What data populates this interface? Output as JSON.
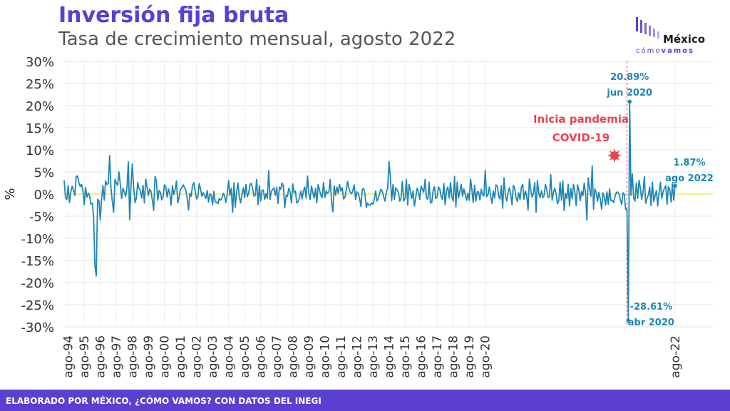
{
  "header": {
    "title": "Inversión fija bruta",
    "subtitle": "Tasa de crecimiento mensual, agosto 2022"
  },
  "logo": {
    "name": "México",
    "tagline_a": "cómo",
    "tagline_b": "vamos"
  },
  "footer": {
    "text": "ELABORADO POR MÉXICO, ¿CÓMO VAMOS? CON DATOS DEL INEGI"
  },
  "colors": {
    "line": "#1f86b8",
    "accent": "#5b3fd1",
    "annotation": "#e8454f",
    "zero_line": "#e8e44a"
  },
  "chart_data": {
    "type": "line",
    "ylabel": "%",
    "ylim": [
      -30,
      30
    ],
    "yticks": [
      "30%",
      "25%",
      "20%",
      "15%",
      "10%",
      "5%",
      "0%",
      "-5%",
      "-10%",
      "-15%",
      "-20%",
      "-25%",
      "-30%"
    ],
    "xticks": [
      "ago-94",
      "ago-95",
      "ago-96",
      "ago-97",
      "ago-98",
      "ago-99",
      "ago-00",
      "ago-01",
      "ago-02",
      "ago-03",
      "ago-04",
      "ago-05",
      "ago-06",
      "ago-07",
      "ago-08",
      "ago-09",
      "ago-10",
      "ago-11",
      "ago-12",
      "ago-13",
      "ago-14",
      "ago-15",
      "ago-16",
      "ago-17",
      "ago-18",
      "ago-19",
      "ago-20",
      "ago-22"
    ],
    "grid": true,
    "series": [
      {
        "values": [
          3.1,
          -0.8,
          -1.2,
          1.9,
          -1.9,
          0.5,
          1.8,
          0.9,
          -0.3,
          4.0,
          4.1,
          2.6,
          1.7,
          2.2,
          0.9,
          -2.4,
          1.5,
          -0.7,
          0.2,
          -0.3,
          -2.3,
          -2.0,
          -5.1,
          -16.0,
          -18.5,
          -1.2,
          -1.5,
          -5.8,
          -1.2,
          1.9,
          -1.4,
          3.0,
          2.2,
          2.4,
          8.7,
          1.5,
          -1.6,
          -4.1,
          3.3,
          2.5,
          2.0,
          5.0,
          2.1,
          -1.0,
          1.3,
          0.5,
          -0.5,
          1.5,
          7.3,
          -5.8,
          2.1,
          6.8,
          1.5,
          -1.9,
          -0.9,
          2.6,
          1.3,
          0.8,
          -0.9,
          2.0,
          -2.0,
          3.4,
          1.6,
          -0.3,
          1.1,
          0.6,
          -1.5,
          -3.7,
          4.0,
          2.9,
          -1.4,
          0.8,
          0.4,
          -1.3,
          -0.6,
          2.1,
          1.7,
          -0.7,
          1.2,
          0.1,
          -2.5,
          1.9,
          -0.1,
          0.9,
          3.0,
          -2.0,
          -0.7,
          1.1,
          1.4,
          2.1,
          1.5,
          0.9,
          -0.9,
          -3.6,
          0.2,
          -0.5,
          1.9,
          2.6,
          0.7,
          -1.1,
          -0.7,
          2.4,
          1.2,
          -0.5,
          0.3,
          -0.3,
          -1.0,
          0.8,
          -1.8,
          0.1,
          -0.3,
          -2.4,
          0.6,
          -1.8,
          -1.8,
          -2.2,
          -1.0,
          -1.4,
          -0.9,
          0.2,
          -0.5,
          -1.9,
          0.1,
          3.1,
          -0.3,
          1.3,
          -4.1,
          2.6,
          -3.0,
          0.4,
          2.5,
          -0.6,
          -2.0,
          -0.1,
          1.4,
          -0.8,
          2.2,
          -0.6,
          0.2,
          2.2,
          2.4,
          1.2,
          -0.5,
          -0.2,
          3.3,
          -2.4,
          1.9,
          -1.6,
          0.8,
          0.9,
          -1.2,
          0.1,
          -1.0,
          5.3,
          -1.2,
          0.7,
          1.0,
          1.4,
          -0.3,
          1.5,
          -2.1,
          1.6,
          1.1,
          2.5,
          1.9,
          -3.1,
          -0.3,
          -0.5,
          1.3,
          0.6,
          -2.0,
          2.3,
          0.3,
          0.7,
          -2.0,
          -1.7,
          -1.0,
          0.7,
          -1.1,
          0.8,
          1.6,
          -0.9,
          4.1,
          0.2,
          -1.2,
          1.8,
          0.4,
          -0.9,
          1.3,
          -2.0,
          2.2,
          0.9,
          -0.3,
          -0.8,
          2.6,
          -0.8,
          0.7,
          0.2,
          0.5,
          3.3,
          -1.8,
          -4.0,
          1.9,
          -0.3,
          1.6,
          0.2,
          2.2,
          0.7,
          1.4,
          -1.1,
          -0.8,
          0.9,
          2.9,
          1.3,
          0.4,
          0.1,
          0.8,
          2.1,
          -1.2,
          0.5,
          0.2,
          -1.0,
          -2.8,
          1.0,
          1.3,
          0.1,
          -3.0,
          -2.0,
          -2.5,
          -2.5,
          -2.0,
          -2.3,
          -1.1,
          0.7,
          -1.6,
          -0.9,
          0.2,
          1.1,
          0.6,
          -0.6,
          -1.6,
          0.4,
          1.3,
          7.3,
          3.9,
          -1.5,
          2.2,
          -1.2,
          1.4,
          0.9,
          0.5,
          -1.6,
          -0.9,
          2.9,
          -1.6,
          -1.0,
          3.3,
          -2.5,
          2.2,
          0.6,
          -1.0,
          0.7,
          -2.7,
          -0.7,
          1.3,
          0.6,
          -1.2,
          1.8,
          1.0,
          0.4,
          3.3,
          -0.9,
          -1.2,
          2.7,
          -2.0,
          -1.9,
          0.9,
          1.7,
          -1.0,
          -0.7,
          1.6,
          1.1,
          -0.6,
          -1.2,
          2.4,
          -2.4,
          0.7,
          1.6,
          -0.9,
          2.6,
          -0.5,
          -1.6,
          4.0,
          -2.9,
          2.7,
          -0.9,
          0.6,
          2.2,
          -0.5,
          1.2,
          -0.1,
          -1.4,
          0.2,
          -1.4,
          3.4,
          0.9,
          -1.9,
          2.0,
          -1.6,
          0.5,
          0.5,
          -1.3,
          1.1,
          -0.2,
          -0.4,
          5.4,
          -0.6,
          -0.2,
          1.6,
          -0.3,
          -2.1,
          0.7,
          -0.9,
          2.1,
          1.8,
          -0.4,
          -1.1,
          1.9,
          -3.2,
          3.7,
          -0.1,
          -1.6,
          0.2,
          1.4,
          0.1,
          -2.4,
          2.0,
          1.3,
          -0.7,
          -1.7,
          0.3,
          -1.2,
          1.5,
          2.2,
          -1.2,
          0.7,
          -0.3,
          -3.6,
          3.4,
          0.9,
          -0.7,
          0.1,
          2.6,
          -4.1,
          3.1,
          0.3,
          -0.8,
          0.8,
          -0.8,
          -0.4,
          2.2,
          1.0,
          -0.8,
          -0.6,
          4.4,
          -1.4,
          0.4,
          1.3,
          0.2,
          -2.2,
          -1.4,
          2.7,
          -1.4,
          3.0,
          -3.7,
          0.2,
          -1.0,
          2.2,
          -2.7,
          1.3,
          -1.1,
          2.2,
          0.5,
          -2.6,
          2.1,
          0.9,
          -1.5,
          0.6,
          -0.4,
          2.5,
          0.2,
          -5.9,
          3.7,
          1.1,
          -0.5,
          6.4,
          -3.4,
          1.2,
          0.3,
          -1.6,
          0.4,
          -1.1,
          -3.4,
          0.3,
          -0.7,
          -2.5,
          0.5,
          -2.3,
          1.2,
          -1.5,
          -1.4,
          -1.9,
          -0.6,
          0.3,
          0.5,
          0.1,
          -1.2,
          -2.3,
          0.3,
          0.0,
          -3.5,
          -3.4,
          -28.61,
          20.89,
          -0.3,
          4.6,
          -0.9,
          -1.6,
          2.5,
          -1.0,
          3.1,
          1.4,
          -1.2,
          0.6,
          3.9,
          -2.1,
          -1.0,
          -0.2,
          1.6,
          -2.6,
          2.7,
          -1.7,
          -0.4,
          0.8,
          -2.7,
          0.4,
          2.7,
          -1.0,
          0.5,
          1.3,
          1.9,
          -2.3,
          1.7,
          1.0,
          -1.8,
          2.3,
          -1.4,
          1.87
        ]
      }
    ],
    "annotations": [
      {
        "label": "20.89%",
        "sub": "jun 2020"
      },
      {
        "label": "-28.61%",
        "sub": "abr 2020"
      },
      {
        "label": "1.87%",
        "sub": "ago 2022"
      },
      {
        "label": "Inicia pandemia",
        "sub": "COVID-19"
      }
    ]
  }
}
